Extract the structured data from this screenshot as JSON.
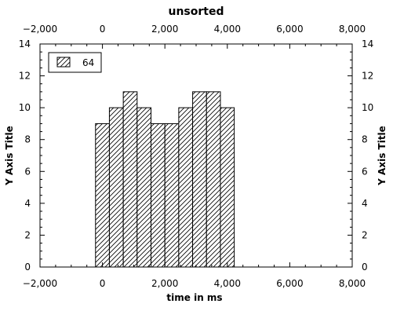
{
  "chart_data": {
    "type": "bar",
    "title": "unsorted",
    "xlabel": "time in ms",
    "ylabel": "Y Axis Title",
    "ylabel_right": "Y Axis Title",
    "xlim": [
      -2000,
      8000
    ],
    "ylim": [
      0,
      14
    ],
    "x_ticks": [
      "−2,000",
      "0",
      "2,000",
      "4,000",
      "6,000",
      "8,000"
    ],
    "x_tick_values": [
      -2000,
      0,
      2000,
      4000,
      6000,
      8000
    ],
    "y_ticks": [
      "0",
      "2",
      "4",
      "6",
      "8",
      "10",
      "12",
      "14"
    ],
    "y_tick_values": [
      0,
      2,
      4,
      6,
      8,
      10,
      12,
      14
    ],
    "grid": false,
    "legend_position": "top-left",
    "fill": "diagonal-hatch",
    "series": [
      {
        "name": "64",
        "bins": [
          {
            "x0": -222,
            "x1": 222,
            "value": 9
          },
          {
            "x0": 222,
            "x1": 667,
            "value": 10
          },
          {
            "x0": 667,
            "x1": 1111,
            "value": 11
          },
          {
            "x0": 1111,
            "x1": 1556,
            "value": 10
          },
          {
            "x0": 1556,
            "x1": 2000,
            "value": 9
          },
          {
            "x0": 2000,
            "x1": 2444,
            "value": 9
          },
          {
            "x0": 2444,
            "x1": 2889,
            "value": 10
          },
          {
            "x0": 2889,
            "x1": 3333,
            "value": 11
          },
          {
            "x0": 3333,
            "x1": 3778,
            "value": 11
          },
          {
            "x0": 3778,
            "x1": 4222,
            "value": 10
          }
        ]
      }
    ]
  }
}
